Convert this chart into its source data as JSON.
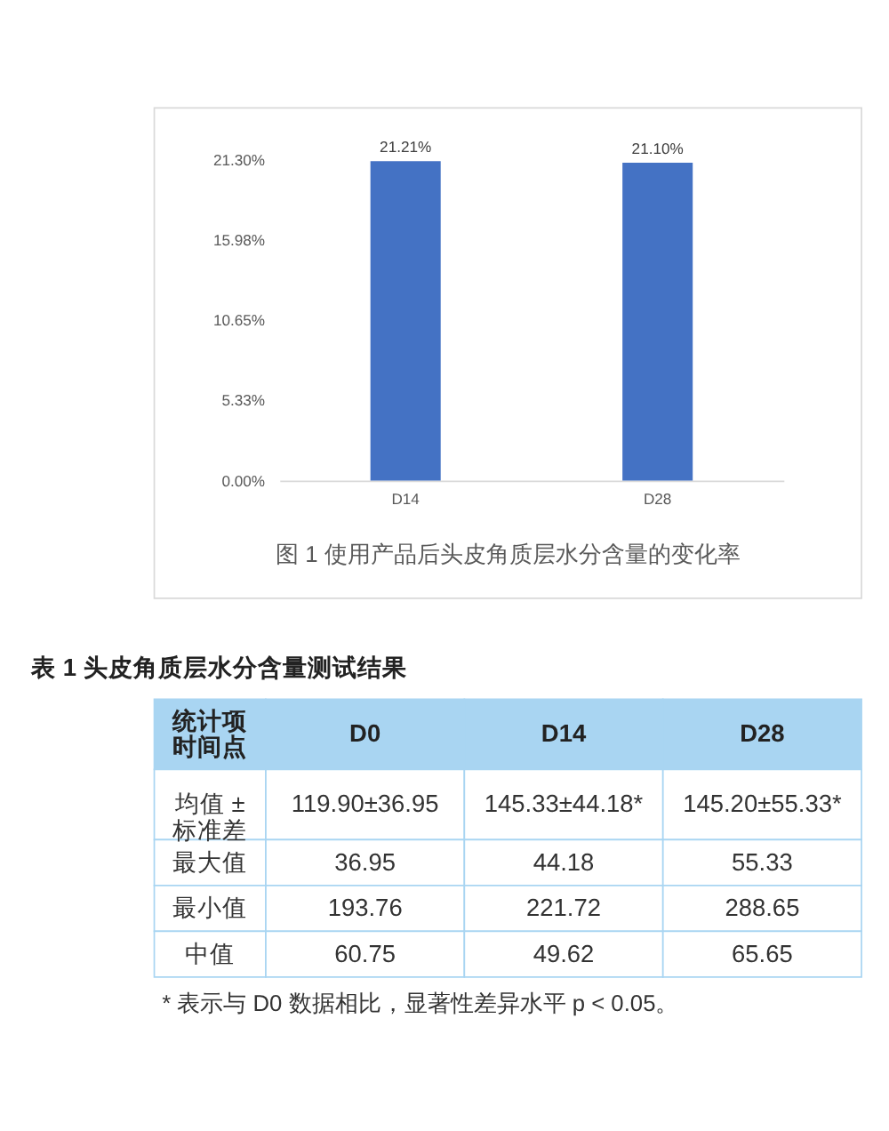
{
  "chart_data": [
    {
      "type": "bar",
      "title": "图 1 使用产品后头皮角质层水分含量的变化率",
      "categories": [
        "D14",
        "D28"
      ],
      "values": [
        21.21,
        21.1
      ],
      "value_labels": [
        "21.21%",
        "21.10%"
      ],
      "color": "#4472c4",
      "ylim": [
        0,
        21.3
      ],
      "yticks": [
        {
          "value": 0,
          "label": "0.00%"
        },
        {
          "value": 5.33,
          "label": "5.33%"
        },
        {
          "value": 10.65,
          "label": "10.65%"
        },
        {
          "value": 15.98,
          "label": "15.98%"
        },
        {
          "value": 21.3,
          "label": "21.30%"
        }
      ]
    },
    {
      "type": "other",
      "title": "表 1 头皮角质层水分含量测试结果",
      "ylabel": "统计项",
      "xlabel": "时间点",
      "categories": [
        "D0",
        "D14",
        "D28"
      ],
      "y_categories": [
        "均值 ±\n标准差",
        "最大值",
        "最小值",
        "中值"
      ],
      "cell_labels": [
        [
          "119.90±36.95",
          "145.33±44.18*",
          "145.20±55.33*"
        ],
        [
          "36.95",
          "44.18",
          "55.33"
        ],
        [
          "193.76",
          "221.72",
          "288.65"
        ],
        [
          "60.75",
          "49.62",
          "65.65"
        ]
      ],
      "color": "#a9d5f2",
      "annotations": [
        "* 表示与 D0 数据相比，显著性差异水平 p < 0.05。"
      ]
    }
  ]
}
